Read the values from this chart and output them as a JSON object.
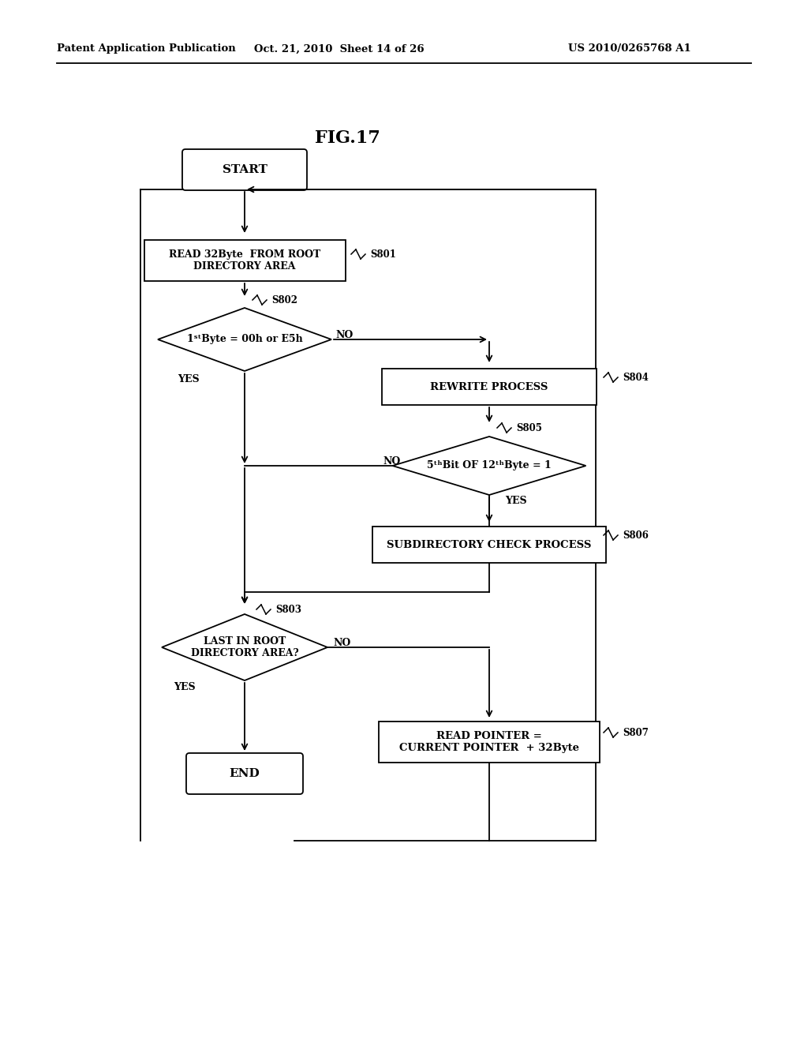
{
  "bg_color": "#ffffff",
  "title": "FIG.17",
  "header_left": "Patent Application Publication",
  "header_mid": "Oct. 21, 2010  Sheet 14 of 26",
  "header_right": "US 2010/0265768 A1"
}
